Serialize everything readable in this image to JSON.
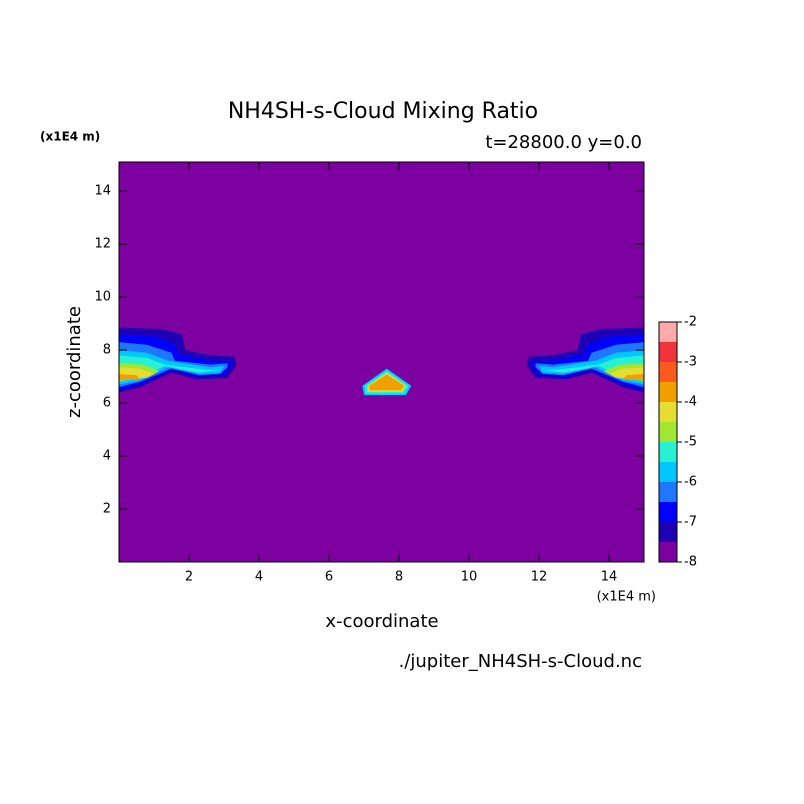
{
  "chart_data": {
    "type": "contour",
    "title": "NH4SH-s-Cloud Mixing Ratio",
    "subtitle": "t=28800.0 y=0.0",
    "x_label": "x-coordinate",
    "y_label": "z-coordinate",
    "x_unit": "(x1E4 m)",
    "y_unit": "(x1E4 m)",
    "footer": "./jupiter_NH4SH-s-Cloud.nc",
    "xlim": [
      0,
      15
    ],
    "ylim": [
      0,
      15.1
    ],
    "xticks": [
      2,
      4,
      6,
      8,
      10,
      12,
      14
    ],
    "yticks": [
      2,
      4,
      6,
      8,
      10,
      12,
      14
    ],
    "levels": [
      -8,
      -7.5,
      -7,
      -6.5,
      -6,
      -5.5,
      -5,
      -4.5,
      -4,
      -3.5,
      -3,
      -2.5,
      -2
    ],
    "colors": [
      "#7d00a0",
      "#1e00b4",
      "#0000ff",
      "#1e78ff",
      "#00c8ff",
      "#28f0d2",
      "#a0e632",
      "#e6dc32",
      "#f0a000",
      "#ff5a1e",
      "#f0343c",
      "#ffaaaa"
    ],
    "colorbar_ticks": [
      -2,
      -3,
      -4,
      -5,
      -6,
      -7,
      -8
    ],
    "regions": [
      {
        "level": -7.5,
        "x": [
          0,
          1.2,
          1.8,
          1.9,
          2.6,
          3.3,
          3.35,
          3.1,
          2.2,
          1.5,
          0.6,
          0
        ],
        "z": [
          8.85,
          8.8,
          8.6,
          8.0,
          7.8,
          7.75,
          7.4,
          6.95,
          6.9,
          7.15,
          6.6,
          6.4
        ]
      },
      {
        "level": -7,
        "x": [
          0,
          1.1,
          1.6,
          1.7,
          2.6,
          3.2,
          3.2,
          3.0,
          2.25,
          1.5,
          0.6,
          0
        ],
        "z": [
          8.6,
          8.5,
          8.2,
          7.85,
          7.6,
          7.6,
          7.4,
          7.05,
          7.0,
          7.25,
          6.7,
          6.5
        ]
      },
      {
        "level": -6.5,
        "x": [
          0,
          0.8,
          1.5,
          1.6,
          2.6,
          3.1,
          3.1,
          2.9,
          2.3,
          1.5,
          0.6,
          0
        ],
        "z": [
          8.3,
          8.2,
          7.9,
          7.6,
          7.45,
          7.5,
          7.35,
          7.1,
          7.05,
          7.3,
          6.8,
          6.6
        ]
      },
      {
        "level": -6,
        "x": [
          0,
          0.8,
          1.4,
          2.6,
          3.0,
          2.9,
          2.3,
          1.4,
          0.6,
          0
        ],
        "z": [
          8.0,
          7.9,
          7.6,
          7.35,
          7.4,
          7.15,
          7.1,
          7.35,
          6.85,
          6.7
        ]
      },
      {
        "level": -5.5,
        "x": [
          0,
          0.8,
          1.3,
          2.5,
          2.85,
          2.3,
          1.3,
          0.6,
          0
        ],
        "z": [
          7.8,
          7.7,
          7.45,
          7.25,
          7.25,
          7.15,
          7.4,
          6.95,
          6.8
        ]
      },
      {
        "level": -5,
        "x": [
          0,
          0.7,
          1.15,
          0.8,
          0
        ],
        "z": [
          7.5,
          7.45,
          7.2,
          6.95,
          6.85
        ]
      },
      {
        "level": -4.5,
        "x": [
          0,
          0.6,
          1.0,
          0.7,
          0
        ],
        "z": [
          7.35,
          7.3,
          7.1,
          6.95,
          6.9
        ]
      },
      {
        "level": -4,
        "x": [
          0,
          0.5,
          0.6,
          0
        ],
        "z": [
          7.1,
          7.05,
          6.9,
          6.85
        ]
      },
      {
        "level": -7.5,
        "x": [
          15,
          13.8,
          13.2,
          13.1,
          12.4,
          11.7,
          11.65,
          11.9,
          12.8,
          13.5,
          14.4,
          15
        ],
        "z": [
          8.85,
          8.8,
          8.6,
          8.0,
          7.8,
          7.75,
          7.4,
          6.95,
          6.9,
          7.15,
          6.6,
          6.4
        ]
      },
      {
        "level": -7,
        "x": [
          15,
          13.9,
          13.4,
          13.3,
          12.4,
          11.8,
          11.8,
          12.0,
          12.75,
          13.5,
          14.4,
          15
        ],
        "z": [
          8.6,
          8.5,
          8.2,
          7.85,
          7.6,
          7.6,
          7.4,
          7.05,
          7.0,
          7.25,
          6.7,
          6.5
        ]
      },
      {
        "level": -6.5,
        "x": [
          15,
          14.2,
          13.5,
          13.4,
          12.4,
          11.9,
          11.9,
          12.1,
          12.7,
          13.5,
          14.4,
          15
        ],
        "z": [
          8.3,
          8.2,
          7.9,
          7.6,
          7.45,
          7.5,
          7.35,
          7.1,
          7.05,
          7.3,
          6.8,
          6.6
        ]
      },
      {
        "level": -6,
        "x": [
          15,
          14.2,
          13.6,
          12.4,
          12.0,
          12.1,
          12.7,
          13.6,
          14.4,
          15
        ],
        "z": [
          8.0,
          7.9,
          7.6,
          7.35,
          7.4,
          7.15,
          7.1,
          7.35,
          6.85,
          6.7
        ]
      },
      {
        "level": -5.5,
        "x": [
          15,
          14.2,
          13.7,
          12.5,
          12.15,
          12.7,
          13.7,
          14.4,
          15
        ],
        "z": [
          7.8,
          7.7,
          7.45,
          7.25,
          7.25,
          7.15,
          7.4,
          6.95,
          6.8
        ]
      },
      {
        "level": -5,
        "x": [
          15,
          14.3,
          13.85,
          14.2,
          15
        ],
        "z": [
          7.5,
          7.45,
          7.2,
          6.95,
          6.85
        ]
      },
      {
        "level": -4.5,
        "x": [
          15,
          14.4,
          14.0,
          14.3,
          15
        ],
        "z": [
          7.35,
          7.3,
          7.1,
          6.95,
          6.9
        ]
      },
      {
        "level": -4,
        "x": [
          15,
          14.5,
          14.4,
          15
        ],
        "z": [
          7.1,
          7.05,
          6.9,
          6.85
        ]
      },
      {
        "level": -6,
        "x": [
          7.0,
          8.2,
          8.35,
          7.65,
          6.95
        ],
        "z": [
          6.3,
          6.3,
          6.65,
          7.3,
          6.65
        ]
      },
      {
        "level": -5.5,
        "x": [
          7.05,
          8.15,
          8.28,
          7.65,
          7.02
        ],
        "z": [
          6.35,
          6.35,
          6.65,
          7.22,
          6.65
        ]
      },
      {
        "level": -4.5,
        "x": [
          7.1,
          8.1,
          8.2,
          7.65,
          7.1
        ],
        "z": [
          6.42,
          6.42,
          6.65,
          7.15,
          6.65
        ]
      },
      {
        "level": -4,
        "x": [
          7.15,
          8.05,
          8.15,
          7.65,
          7.15
        ],
        "z": [
          6.48,
          6.48,
          6.65,
          7.08,
          6.65
        ]
      }
    ]
  }
}
